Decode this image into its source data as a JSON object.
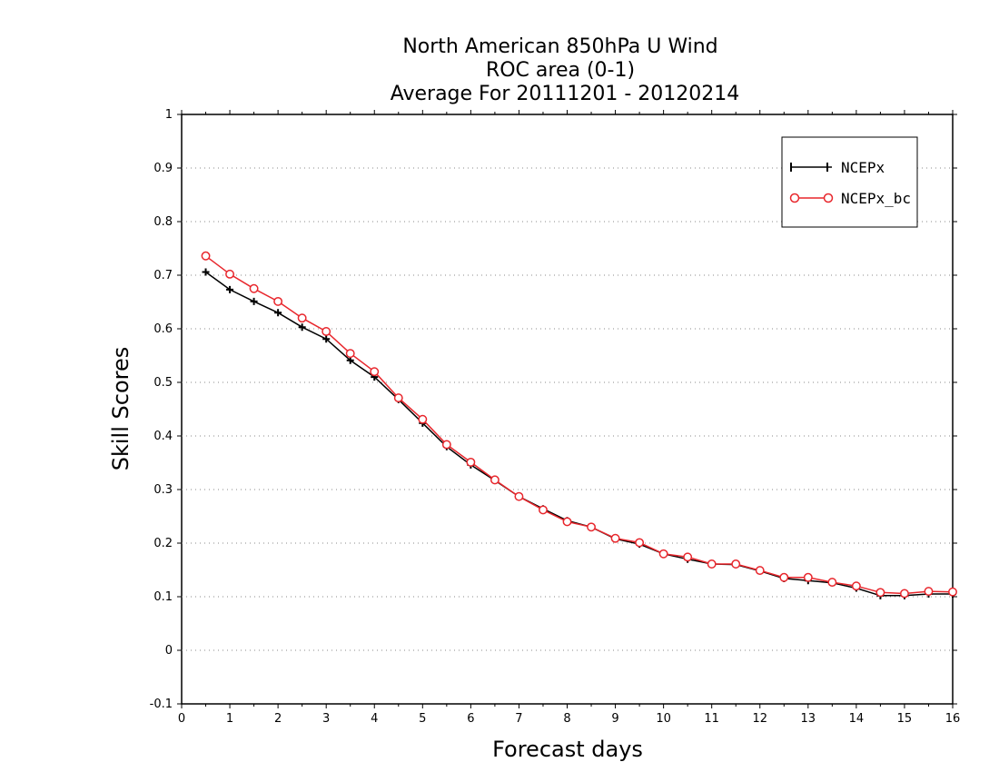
{
  "chart_data": {
    "type": "line",
    "title_lines": [
      "North American 850hPa U Wind",
      "ROC area (0-1)",
      "Average For 20111201 - 20120214"
    ],
    "xlabel": "Forecast days",
    "ylabel": "Skill Scores",
    "xlim": [
      0,
      16
    ],
    "ylim": [
      -0.1,
      1
    ],
    "x_ticks": [
      "0",
      "1",
      "2",
      "3",
      "4",
      "5",
      "6",
      "7",
      "8",
      "9",
      "10",
      "11",
      "12",
      "13",
      "14",
      "15",
      "16"
    ],
    "y_ticks": [
      "-0.1",
      "0",
      "0.1",
      "0.2",
      "0.3",
      "0.4",
      "0.5",
      "0.6",
      "0.7",
      "0.8",
      "0.9",
      "1"
    ],
    "grid": "horizontal dotted",
    "legend_position": "top-right",
    "x": [
      0.5,
      1,
      1.5,
      2,
      2.5,
      3,
      3.5,
      4,
      4.5,
      5,
      5.5,
      6,
      6.5,
      7,
      7.5,
      8,
      8.5,
      9,
      9.5,
      10,
      10.5,
      11,
      11.5,
      12,
      12.5,
      13,
      13.5,
      14,
      14.5,
      15,
      15.5,
      16
    ],
    "series": [
      {
        "name": "NCEPx",
        "color": "#000000",
        "marker": "plus",
        "values": [
          0.706,
          0.673,
          0.651,
          0.63,
          0.603,
          0.581,
          0.541,
          0.51,
          0.468,
          0.424,
          0.38,
          0.346,
          0.317,
          0.287,
          0.264,
          0.242,
          0.23,
          0.208,
          0.198,
          0.18,
          0.17,
          0.161,
          0.16,
          0.148,
          0.134,
          0.13,
          0.126,
          0.116,
          0.102,
          0.102,
          0.105,
          0.105
        ]
      },
      {
        "name": "NCEPx_bc",
        "color": "#e8262c",
        "marker": "circle",
        "values": [
          0.736,
          0.702,
          0.675,
          0.651,
          0.62,
          0.595,
          0.554,
          0.52,
          0.471,
          0.431,
          0.384,
          0.351,
          0.318,
          0.287,
          0.262,
          0.24,
          0.23,
          0.209,
          0.201,
          0.18,
          0.174,
          0.161,
          0.161,
          0.149,
          0.136,
          0.136,
          0.127,
          0.12,
          0.108,
          0.106,
          0.11,
          0.109
        ]
      }
    ]
  }
}
